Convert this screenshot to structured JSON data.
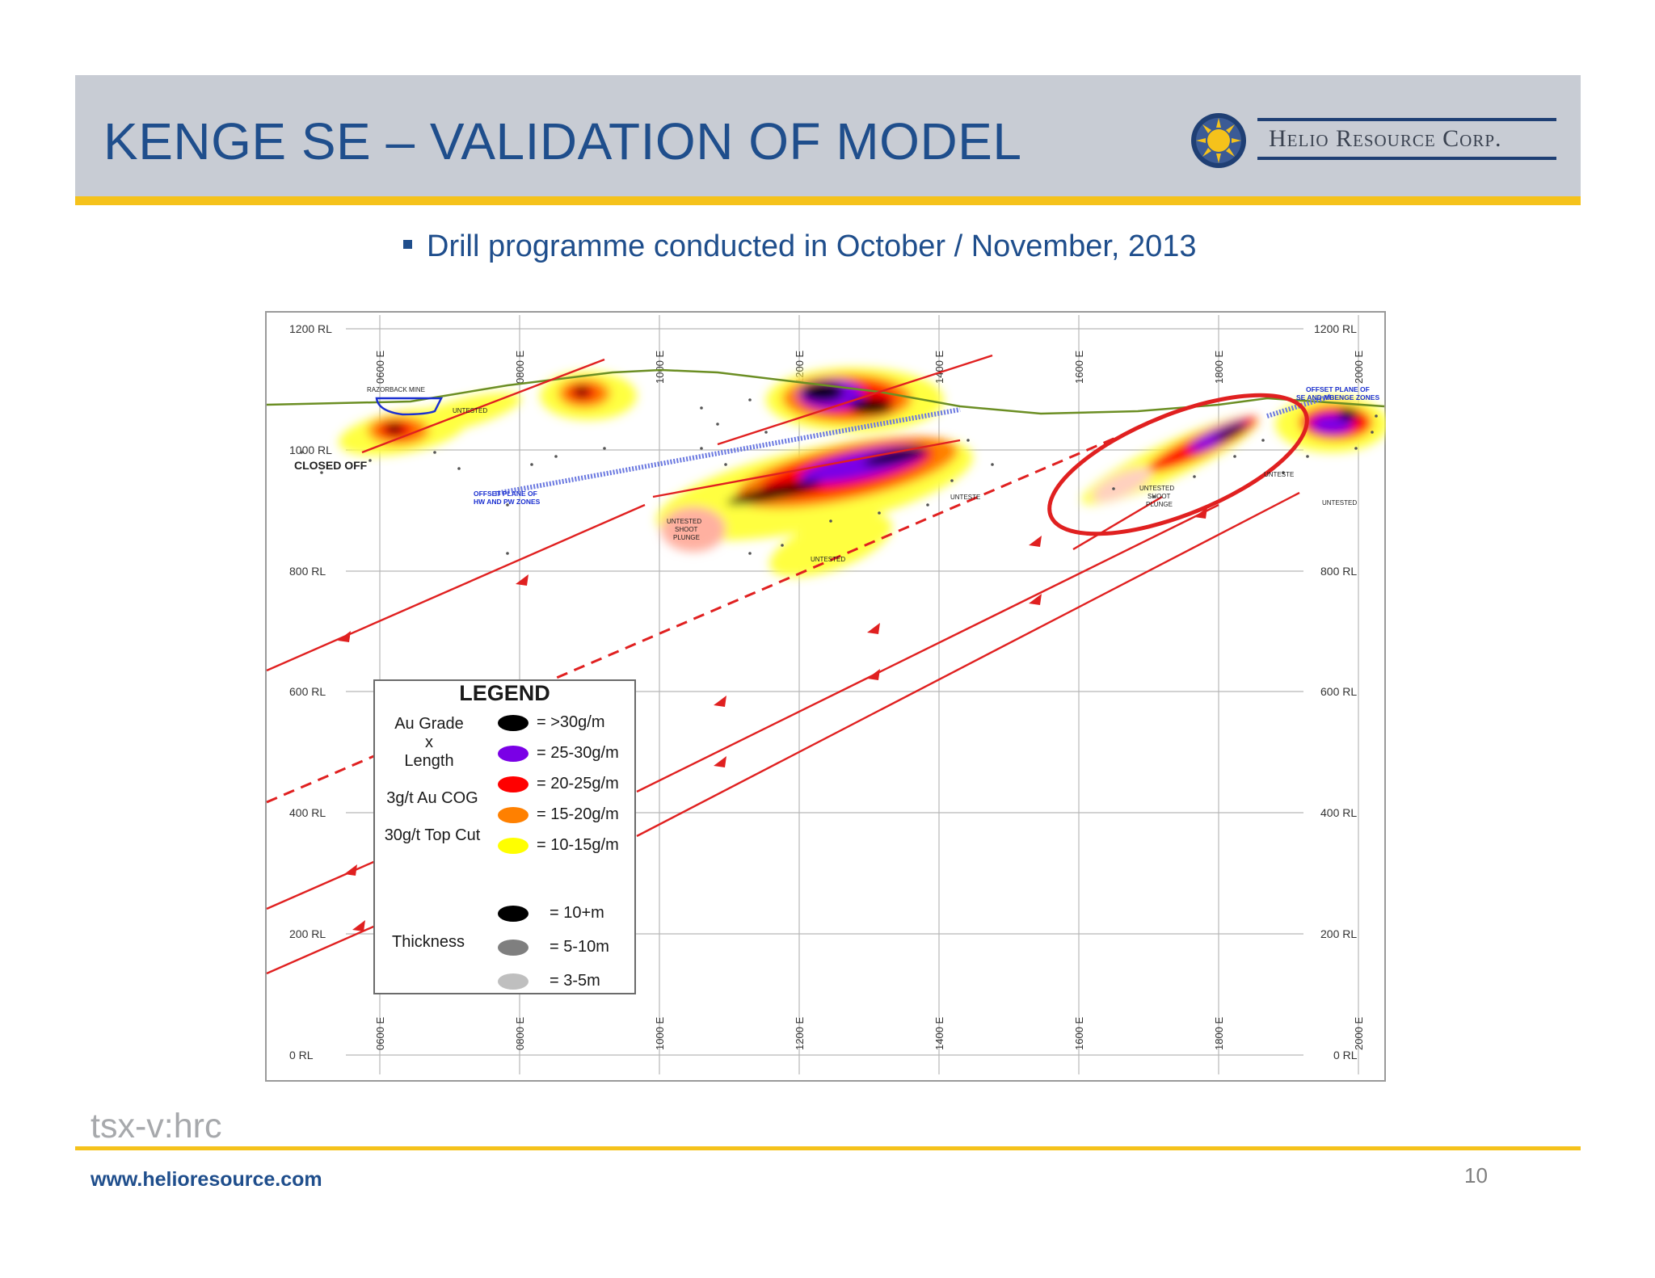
{
  "header": {
    "title": "KENGE SE – VALIDATION OF MODEL",
    "logo_text": "Helio Resource Corp."
  },
  "bullet": {
    "text": "Drill programme conducted in October / November, 2013"
  },
  "section": {
    "rl_labels": [
      "1200 RL",
      "1000 RL",
      "800 RL",
      "600 RL",
      "400 RL",
      "200 RL",
      "0 RL"
    ],
    "e_labels": [
      "0600 E",
      "0800 E",
      "1000 E",
      "1200 E",
      "1400 E",
      "1600 E",
      "1800 E",
      "2000 E"
    ],
    "annotations": {
      "closed_off": "CLOSED OFF",
      "razorback": "RAZORBACK MINE",
      "untested": "UNTESTED",
      "untested_short": "UNTESTE",
      "offset_hw": [
        "OFFSET PLANE OF",
        "HW AND PW ZONES"
      ],
      "offset_se": [
        "OFFSET PLANE OF",
        "SE AND MBENGE ZONES"
      ],
      "shoot_plunge": [
        "UNTESTED",
        "SHOOT",
        "PLUNGE"
      ]
    }
  },
  "legend": {
    "title": "LEGEND",
    "grade_label": [
      "Au Grade",
      "x",
      "Length"
    ],
    "cog_label": "3g/t Au COG",
    "topcut_label": "30g/t Top Cut",
    "thickness_label": "Thickness",
    "grade_items": [
      {
        "label": "=    >30g/m",
        "color": "#000000"
      },
      {
        "label": "= 25-30g/m",
        "color": "#7a00e6"
      },
      {
        "label": "= 20-25g/m",
        "color": "#ff0000"
      },
      {
        "label": "= 15-20g/m",
        "color": "#ff8000"
      },
      {
        "label": "= 10-15g/m",
        "color": "#ffff00"
      }
    ],
    "thickness_items": [
      {
        "label": "= 10+m",
        "color": "#000000"
      },
      {
        "label": "= 5-10m",
        "color": "#7f7f7f"
      },
      {
        "label": "= 3-5m",
        "color": "#bfbfbf"
      }
    ]
  },
  "footer": {
    "ticker": "tsx-v:hrc",
    "url": "www.helioresource.com",
    "page": "10"
  },
  "colors": {
    "title_blue": "#1f4e8c",
    "accent_gold": "#f5c21b",
    "header_gray": "#c8ccd4",
    "drill_red": "#e02020",
    "surface_green": "#6b8e23",
    "offset_blue": "#5a6ad8"
  }
}
